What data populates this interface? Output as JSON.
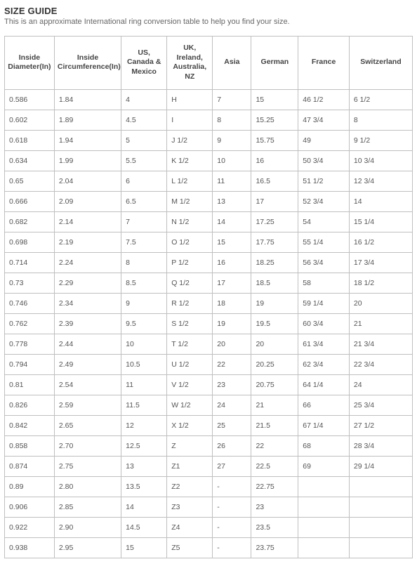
{
  "header": {
    "title": "SIZE GUIDE",
    "subtitle": "This is an approximate International ring conversion table to help you find your size."
  },
  "table": {
    "columns": [
      "Inside Diameter(In)",
      "Inside Circumference(In)",
      "US, Canada & Mexico",
      "UK, Ireland, Australia, NZ",
      "Asia",
      "German",
      "France",
      "Switzerland"
    ],
    "rows": [
      [
        "0.586",
        "1.84",
        "4",
        "H",
        "7",
        "15",
        "46 1/2",
        "6 1/2"
      ],
      [
        "0.602",
        "1.89",
        "4.5",
        "I",
        "8",
        "15.25",
        "47 3/4",
        "8"
      ],
      [
        "0.618",
        "1.94",
        "5",
        "J 1/2",
        "9",
        "15.75",
        "49",
        "9 1/2"
      ],
      [
        "0.634",
        "1.99",
        "5.5",
        "K 1/2",
        "10",
        "16",
        "50 3/4",
        "10 3/4"
      ],
      [
        "0.65",
        "2.04",
        "6",
        "L 1/2",
        "11",
        "16.5",
        "51 1/2",
        "12 3/4"
      ],
      [
        "0.666",
        "2.09",
        "6.5",
        "M 1/2",
        "13",
        "17",
        "52 3/4",
        "14"
      ],
      [
        "0.682",
        "2.14",
        "7",
        "N 1/2",
        "14",
        "17.25",
        "54",
        "15 1/4"
      ],
      [
        "0.698",
        "2.19",
        "7.5",
        "O 1/2",
        "15",
        "17.75",
        "55 1/4",
        "16 1/2"
      ],
      [
        "0.714",
        "2.24",
        "8",
        "P 1/2",
        "16",
        "18.25",
        "56 3/4",
        "17 3/4"
      ],
      [
        "0.73",
        "2.29",
        "8.5",
        "Q 1/2",
        "17",
        "18.5",
        "58",
        "18 1/2"
      ],
      [
        "0.746",
        "2.34",
        "9",
        "R 1/2",
        "18",
        "19",
        "59 1/4",
        "20"
      ],
      [
        "0.762",
        "2.39",
        "9.5",
        "S 1/2",
        "19",
        "19.5",
        "60 3/4",
        "21"
      ],
      [
        "0.778",
        "2.44",
        "10",
        "T 1/2",
        "20",
        "20",
        "61 3/4",
        "21 3/4"
      ],
      [
        "0.794",
        "2.49",
        "10.5",
        "U 1/2",
        "22",
        "20.25",
        "62 3/4",
        "22 3/4"
      ],
      [
        "0.81",
        "2.54",
        "11",
        "V 1/2",
        "23",
        "20.75",
        "64 1/4",
        "24"
      ],
      [
        "0.826",
        "2.59",
        "11.5",
        "W 1/2",
        "24",
        "21",
        "66",
        "25 3/4"
      ],
      [
        "0.842",
        "2.65",
        "12",
        "X 1/2",
        "25",
        "21.5",
        "67 1/4",
        "27 1/2"
      ],
      [
        "0.858",
        "2.70",
        "12.5",
        "Z",
        "26",
        "22",
        "68",
        "28 3/4"
      ],
      [
        "0.874",
        "2.75",
        "13",
        "Z1",
        "27",
        "22.5",
        "69",
        "29 1/4"
      ],
      [
        "0.89",
        "2.80",
        "13.5",
        "Z2",
        "-",
        "22.75",
        "",
        ""
      ],
      [
        "0.906",
        "2.85",
        "14",
        "Z3",
        "-",
        "23",
        "",
        ""
      ],
      [
        "0.922",
        "2.90",
        "14.5",
        "Z4",
        "-",
        "23.5",
        "",
        ""
      ],
      [
        "0.938",
        "2.95",
        "15",
        "Z5",
        "-",
        "23.75",
        "",
        ""
      ]
    ]
  }
}
